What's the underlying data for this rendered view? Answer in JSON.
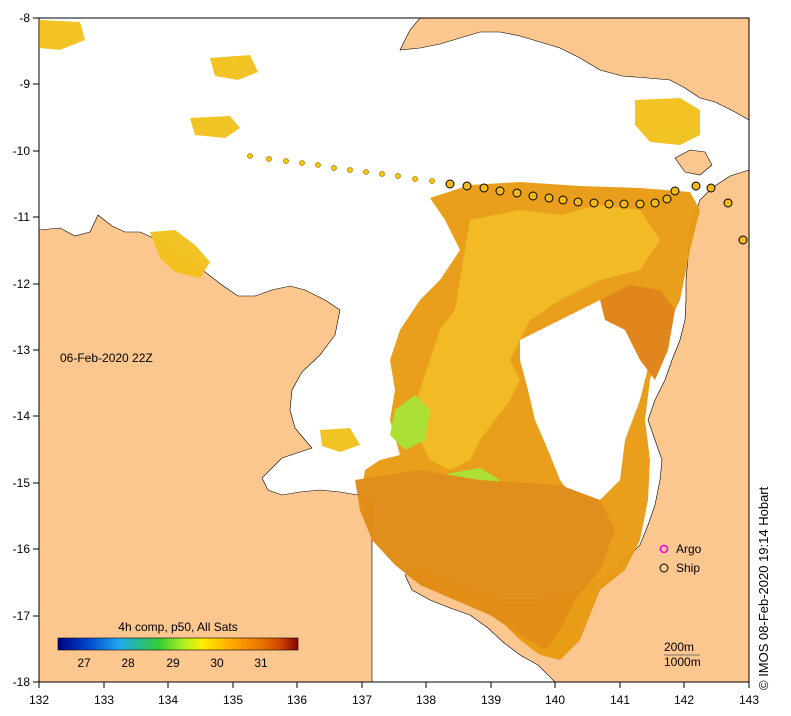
{
  "map": {
    "date_label": "06-Feb-2020 22Z",
    "colorbar": {
      "title": "4h comp, p50, All Sats",
      "ticks": [
        "27",
        "28",
        "29",
        "30",
        "31"
      ],
      "colors": [
        "#00007f",
        "#0044cc",
        "#22aaee",
        "#33cc33",
        "#aaee22",
        "#ffee00",
        "#ffaa00",
        "#ee7700",
        "#cc4400",
        "#880000"
      ]
    },
    "legend": {
      "argo": "Argo",
      "ship": "Ship"
    },
    "depth": {
      "a": "200m",
      "b": "1000m"
    },
    "credit": "© IMOS 08-Feb-2020 19:14 Hobart",
    "x_ticks": [
      "132",
      "133",
      "134",
      "135",
      "136",
      "137",
      "138",
      "139",
      "140",
      "141",
      "142",
      "143"
    ],
    "y_ticks": [
      "-8",
      "-9",
      "-10",
      "-11",
      "-12",
      "-13",
      "-14",
      "-15",
      "-16",
      "-17",
      "-18"
    ],
    "colors": {
      "land": "#fcc68f",
      "sst_warm": "#e89a10",
      "sst_mid": "#f2b81a",
      "sst_cool": "#a6e02a",
      "argo": "#ee00ee"
    }
  }
}
